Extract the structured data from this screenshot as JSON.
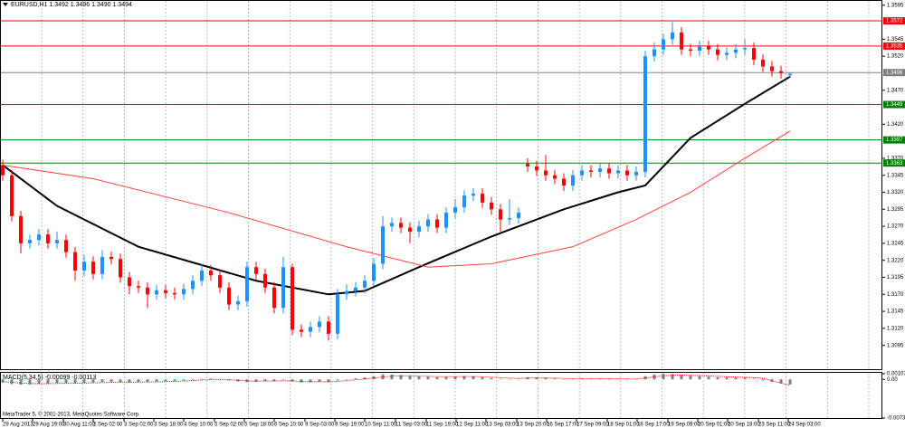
{
  "chart_data": {
    "type": "candlestick",
    "title": "EURUSD,H1 1.3492 1.3496 1.3490 1.3494",
    "copyright": "MetaTrader 5, © 2001-2013, MetaQuotes Software Corp.",
    "up_color": "#1e90ff",
    "down_color": "#ff0000",
    "ylim": [
      1.306,
      1.36
    ],
    "yticks": [
      1.3595,
      1.3545,
      {
        "value": 1.352,
        "label": "1.3520"
      },
      {
        "value": 1.347,
        "label": "1.3470"
      },
      {
        "value": 1.342,
        "label": "1.3420"
      },
      {
        "value": 1.337,
        "label": "1.3370"
      },
      1.3345,
      {
        "value": 1.332,
        "label": "1.3320"
      },
      1.3295,
      {
        "value": 1.327,
        "label": "1.3270"
      },
      1.3245,
      {
        "value": 1.322,
        "label": "1.3220"
      },
      1.3195,
      {
        "value": 1.317,
        "label": "1.3170"
      },
      1.3145,
      {
        "value": 1.312,
        "label": "1.3120"
      },
      1.3095
    ],
    "xticks": [
      {
        "value": 0,
        "label": "29 Aug 2013"
      },
      {
        "value": 3.3,
        "label": "29 Aug 19:00"
      },
      {
        "value": 6.7,
        "label": "30 Aug 11:00"
      },
      {
        "value": 10,
        "label": "2 Sep 02:00"
      },
      {
        "value": 13.4,
        "label": "3 Sep 02:00"
      },
      {
        "value": 16.7,
        "label": "3 Sep 18:00"
      },
      {
        "value": 20,
        "label": "4 Sep 10:00"
      },
      {
        "value": 23.4,
        "label": "5 Sep 02:00"
      },
      {
        "value": 26.7,
        "label": "5 Sep 18:00"
      },
      {
        "value": 30,
        "label": "6 Sep 10:00"
      },
      {
        "value": 33.4,
        "label": "9 Sep 03:00"
      },
      {
        "value": 36.7,
        "label": "9 Sep 19:00"
      },
      {
        "value": 40,
        "label": "10 Sep 11:00"
      },
      {
        "value": 43.4,
        "label": "11 Sep 03:00"
      },
      {
        "value": 46.8,
        "label": "11 Sep 19:00"
      },
      {
        "value": 50.1,
        "label": "12 Sep 11:00"
      },
      {
        "value": 53.4,
        "label": "13 Sep 03:00"
      },
      {
        "value": 56.8,
        "label": "13 Sep 20:00"
      },
      {
        "value": 60.1,
        "label": "16 Sep 17:00"
      },
      {
        "value": 63.4,
        "label": "17 Sep 09:00"
      },
      {
        "value": 66.8,
        "label": "18 Sep 01:00"
      },
      {
        "value": 70.1,
        "label": "18 Sep 17:00"
      },
      {
        "value": 73.5,
        "label": "19 Sep 09:00"
      },
      {
        "value": 76.8,
        "label": "20 Sep 01:00"
      },
      {
        "value": 80.1,
        "label": "20 Sep 18:00"
      },
      {
        "value": 83.5,
        "label": "23 Sep 11:00"
      },
      {
        "value": 86.8,
        "label": "24 Sep 03:00"
      }
    ],
    "levels": [
      {
        "value": 1.3572,
        "color": "#ff0000"
      },
      {
        "value": 1.3535,
        "color": "#ff0000"
      },
      {
        "value": 1.3496,
        "color": "#808080"
      },
      {
        "value": 1.3449,
        "color": "#008000"
      },
      {
        "value": 1.3397,
        "color": "#008000"
      },
      {
        "value": 1.3363,
        "color": "#008000"
      }
    ],
    "open": [
      1.336,
      1.3345,
      1.3285,
      1.3245,
      1.325,
      1.3258,
      1.3245,
      1.325,
      1.3232,
      1.3205,
      1.3218,
      1.32,
      1.3225,
      1.3222,
      1.3195,
      1.3182,
      1.318,
      1.317,
      1.3176,
      1.3172,
      1.317,
      1.3178,
      1.319,
      1.3205,
      1.3198,
      1.318,
      1.3155,
      1.316,
      1.321,
      1.32,
      1.318,
      1.315,
      1.321,
      1.3118,
      1.3115,
      1.3122,
      1.313,
      1.3112,
      1.317,
      1.3175,
      1.318,
      1.319,
      1.3215,
      1.327,
      1.3275,
      1.3268,
      1.3262,
      1.327,
      1.328,
      1.3268,
      1.329,
      1.3298,
      1.3315,
      1.3318,
      1.3305,
      1.3295,
      1.328,
      1.3282,
      1.3362,
      1.3358,
      1.3352,
      1.3345,
      1.334,
      1.333,
      1.3345,
      1.3352,
      1.335,
      1.3355,
      1.3348,
      1.3352,
      1.3345,
      1.335,
      1.352,
      1.353,
      1.3545,
      1.3555,
      1.353,
      1.3528,
      1.3535,
      1.353,
      1.3522,
      1.3525,
      1.353,
      1.3532,
      1.3515,
      1.3505,
      1.3498,
      1.3492
    ],
    "high": [
      1.3368,
      1.3353,
      1.3293,
      1.3258,
      1.3266,
      1.3266,
      1.3262,
      1.3258,
      1.324,
      1.3228,
      1.3226,
      1.3235,
      1.3233,
      1.323,
      1.3203,
      1.319,
      1.3188,
      1.3184,
      1.3184,
      1.318,
      1.3186,
      1.3198,
      1.3215,
      1.3213,
      1.3206,
      1.3188,
      1.3168,
      1.3218,
      1.3218,
      1.3208,
      1.3188,
      1.3225,
      1.3215,
      1.3126,
      1.313,
      1.3138,
      1.3138,
      1.3178,
      1.3185,
      1.3188,
      1.3198,
      1.3223,
      1.3285,
      1.3283,
      1.3283,
      1.3276,
      1.3278,
      1.3288,
      1.3288,
      1.3298,
      1.331,
      1.3323,
      1.3326,
      1.3326,
      1.3313,
      1.3303,
      1.331,
      1.3298,
      1.337,
      1.3366,
      1.3375,
      1.3353,
      1.3348,
      1.3353,
      1.336,
      1.336,
      1.3363,
      1.3363,
      1.336,
      1.336,
      1.3358,
      1.3528,
      1.354,
      1.3553,
      1.357,
      1.3563,
      1.3538,
      1.3543,
      1.3543,
      1.3538,
      1.3533,
      1.3538,
      1.3545,
      1.354,
      1.3523,
      1.3513,
      1.3506,
      1.3496
    ],
    "low": [
      1.3337,
      1.3277,
      1.323,
      1.3237,
      1.3242,
      1.3237,
      1.3237,
      1.3224,
      1.319,
      1.3197,
      1.3192,
      1.3192,
      1.3214,
      1.3187,
      1.317,
      1.3172,
      1.315,
      1.3162,
      1.3164,
      1.3162,
      1.3162,
      1.317,
      1.3182,
      1.319,
      1.3172,
      1.3147,
      1.3147,
      1.3152,
      1.3192,
      1.3172,
      1.3142,
      1.3142,
      1.311,
      1.3107,
      1.3107,
      1.3114,
      1.3102,
      1.3104,
      1.3162,
      1.3167,
      1.3172,
      1.3182,
      1.3207,
      1.3262,
      1.326,
      1.3245,
      1.3254,
      1.3262,
      1.326,
      1.326,
      1.3282,
      1.329,
      1.3307,
      1.3297,
      1.3287,
      1.3262,
      1.3272,
      1.3274,
      1.335,
      1.3344,
      1.3337,
      1.3332,
      1.3322,
      1.3322,
      1.3337,
      1.3342,
      1.3342,
      1.334,
      1.334,
      1.3337,
      1.3337,
      1.3342,
      1.3512,
      1.3522,
      1.3537,
      1.3522,
      1.352,
      1.352,
      1.3522,
      1.3514,
      1.3514,
      1.3517,
      1.3522,
      1.3507,
      1.3497,
      1.349,
      1.3487,
      1.349
    ],
    "close": [
      1.3345,
      1.3285,
      1.3245,
      1.325,
      1.3258,
      1.3245,
      1.325,
      1.3232,
      1.3205,
      1.3218,
      1.32,
      1.3225,
      1.3222,
      1.3195,
      1.3182,
      1.318,
      1.317,
      1.3176,
      1.3172,
      1.317,
      1.3178,
      1.319,
      1.3205,
      1.3198,
      1.318,
      1.3155,
      1.316,
      1.321,
      1.32,
      1.318,
      1.315,
      1.321,
      1.3118,
      1.3115,
      1.3122,
      1.313,
      1.3112,
      1.317,
      1.3175,
      1.318,
      1.319,
      1.3215,
      1.327,
      1.3275,
      1.3268,
      1.3262,
      1.327,
      1.328,
      1.3268,
      1.329,
      1.3298,
      1.3315,
      1.3318,
      1.3305,
      1.3295,
      1.328,
      1.3282,
      1.329,
      1.3358,
      1.3352,
      1.3345,
      1.334,
      1.333,
      1.3345,
      1.3352,
      1.335,
      1.3355,
      1.3348,
      1.3352,
      1.3345,
      1.335,
      1.352,
      1.353,
      1.3545,
      1.3555,
      1.353,
      1.3528,
      1.3535,
      1.353,
      1.3522,
      1.3525,
      1.353,
      1.3532,
      1.3515,
      1.3505,
      1.3498,
      1.3495,
      1.3494
    ],
    "moving_averages": [
      {
        "color": "#000000",
        "x": [
          0,
          6,
          15,
          28,
          36,
          40,
          46,
          54,
          62,
          68,
          71,
          76,
          82,
          87
        ],
        "values": [
          1.336,
          1.33,
          1.324,
          1.319,
          1.317,
          1.3175,
          1.321,
          1.3255,
          1.3295,
          1.332,
          1.333,
          1.34,
          1.345,
          1.349
        ]
      },
      {
        "color": "#ff4040",
        "x": [
          0,
          10,
          25,
          38,
          47,
          54,
          63,
          70,
          76,
          82,
          87
        ],
        "values": [
          1.336,
          1.334,
          1.329,
          1.324,
          1.321,
          1.3215,
          1.324,
          1.328,
          1.332,
          1.337,
          1.341
        ]
      }
    ],
    "macd": {
      "label": "MACD(5,34,5) -0.00099 -0.00113",
      "ylim": [
        -0.00737,
        0.00107
      ],
      "yticks": [
        0.00107,
        {
          "value": 0,
          "label": "0.00"
        },
        -0.00737
      ],
      "color": "#808080",
      "signal_color": "#ff0000",
      "values": [
        -0.0006,
        -0.0009,
        -0.001,
        -0.00095,
        -0.00085,
        -0.0008,
        -0.0007,
        -0.0007,
        -0.00075,
        -0.00065,
        -0.0006,
        -0.0005,
        -0.00045,
        -0.0005,
        -0.00055,
        -0.0005,
        -0.00045,
        -0.0004,
        -0.00035,
        -0.0003,
        -0.0002,
        -0.0001,
        0.0001,
        0.00015,
        5e-05,
        -0.0002,
        -0.0004,
        -0.00055,
        -0.00045,
        -0.0003,
        -0.00035,
        -0.0001,
        -0.0004,
        -0.0006,
        -0.00055,
        -0.00045,
        -0.0005,
        -0.0002,
        0,
        0.0002,
        0.00035,
        0.0006,
        0.00095,
        0.0009,
        0.0008,
        0.00065,
        0.00055,
        0.0005,
        0.0004,
        0.00045,
        0.00055,
        0.0006,
        0.00055,
        0.0004,
        0.00025,
        0.0001,
        5e-05,
        0.0001,
        0.0004,
        0.00035,
        0.00025,
        0.00015,
        5e-05,
        0.0001,
        0.00015,
        0.00012,
        0.00015,
        0.0001,
        8e-05,
        5e-05,
        5e-05,
        0.0006,
        0.0009,
        0.00105,
        0.001,
        0.00085,
        0.0007,
        0.0006,
        0.0005,
        0.0004,
        0.00035,
        0.00032,
        0.0003,
        0.0001,
        -0.0002,
        -0.0005,
        -0.0008,
        -0.00099
      ],
      "signal": [
        -0.0004,
        -0.00055,
        -0.0007,
        -0.0008,
        -0.00082,
        -0.00082,
        -0.00078,
        -0.00075,
        -0.00075,
        -0.00072,
        -0.00068,
        -0.00062,
        -0.00057,
        -0.00055,
        -0.00055,
        -0.00053,
        -0.0005,
        -0.00047,
        -0.00043,
        -0.00039,
        -0.00033,
        -0.00025,
        -0.00013,
        -5e-05,
        -2e-05,
        -8e-05,
        -0.00018,
        -0.0003,
        -0.00035,
        -0.00033,
        -0.00034,
        -0.00026,
        -0.0003,
        -0.0004,
        -0.00045,
        -0.00045,
        -0.00047,
        -0.00038,
        -0.00025,
        -0.0001,
        5e-05,
        0.00025,
        0.00045,
        0.0006,
        0.00067,
        0.00066,
        0.00062,
        0.00058,
        0.00052,
        0.0005,
        0.00051,
        0.00054,
        0.00054,
        0.00049,
        0.00041,
        0.00031,
        0.00022,
        0.00018,
        0.00025,
        0.00028,
        0.00027,
        0.00023,
        0.00017,
        0.00015,
        0.00015,
        0.00014,
        0.00014,
        0.00013,
        0.00011,
        9e-05,
        8e-05,
        0.00025,
        0.00047,
        0.00066,
        0.00077,
        0.0008,
        0.00077,
        0.00071,
        0.00064,
        0.00056,
        0.00049,
        0.00043,
        0.00039,
        0.00031,
        0.00021,
        -0.0003,
        -0.0007,
        -0.00113
      ]
    }
  }
}
